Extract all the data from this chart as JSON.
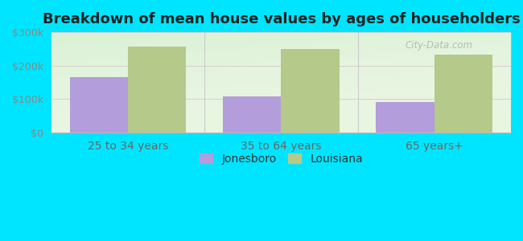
{
  "title": "Breakdown of mean house values by ages of householders",
  "categories": [
    "25 to 34 years",
    "35 to 64 years",
    "65 years+"
  ],
  "jonesboro_values": [
    165000,
    108000,
    90000
  ],
  "louisiana_values": [
    258000,
    250000,
    232000
  ],
  "jonesboro_color": "#b39ddb",
  "louisiana_color": "#b5c98a",
  "ylim": [
    0,
    300000
  ],
  "yticks": [
    0,
    100000,
    200000,
    300000
  ],
  "ytick_labels": [
    "$0",
    "$100k",
    "$200k",
    "$300k"
  ],
  "legend_labels": [
    "Jonesboro",
    "Louisiana"
  ],
  "background_color": "#00e5ff",
  "title_fontsize": 13,
  "tick_fontsize": 9,
  "legend_fontsize": 10,
  "bar_width": 0.38,
  "watermark": "City-Data.com"
}
